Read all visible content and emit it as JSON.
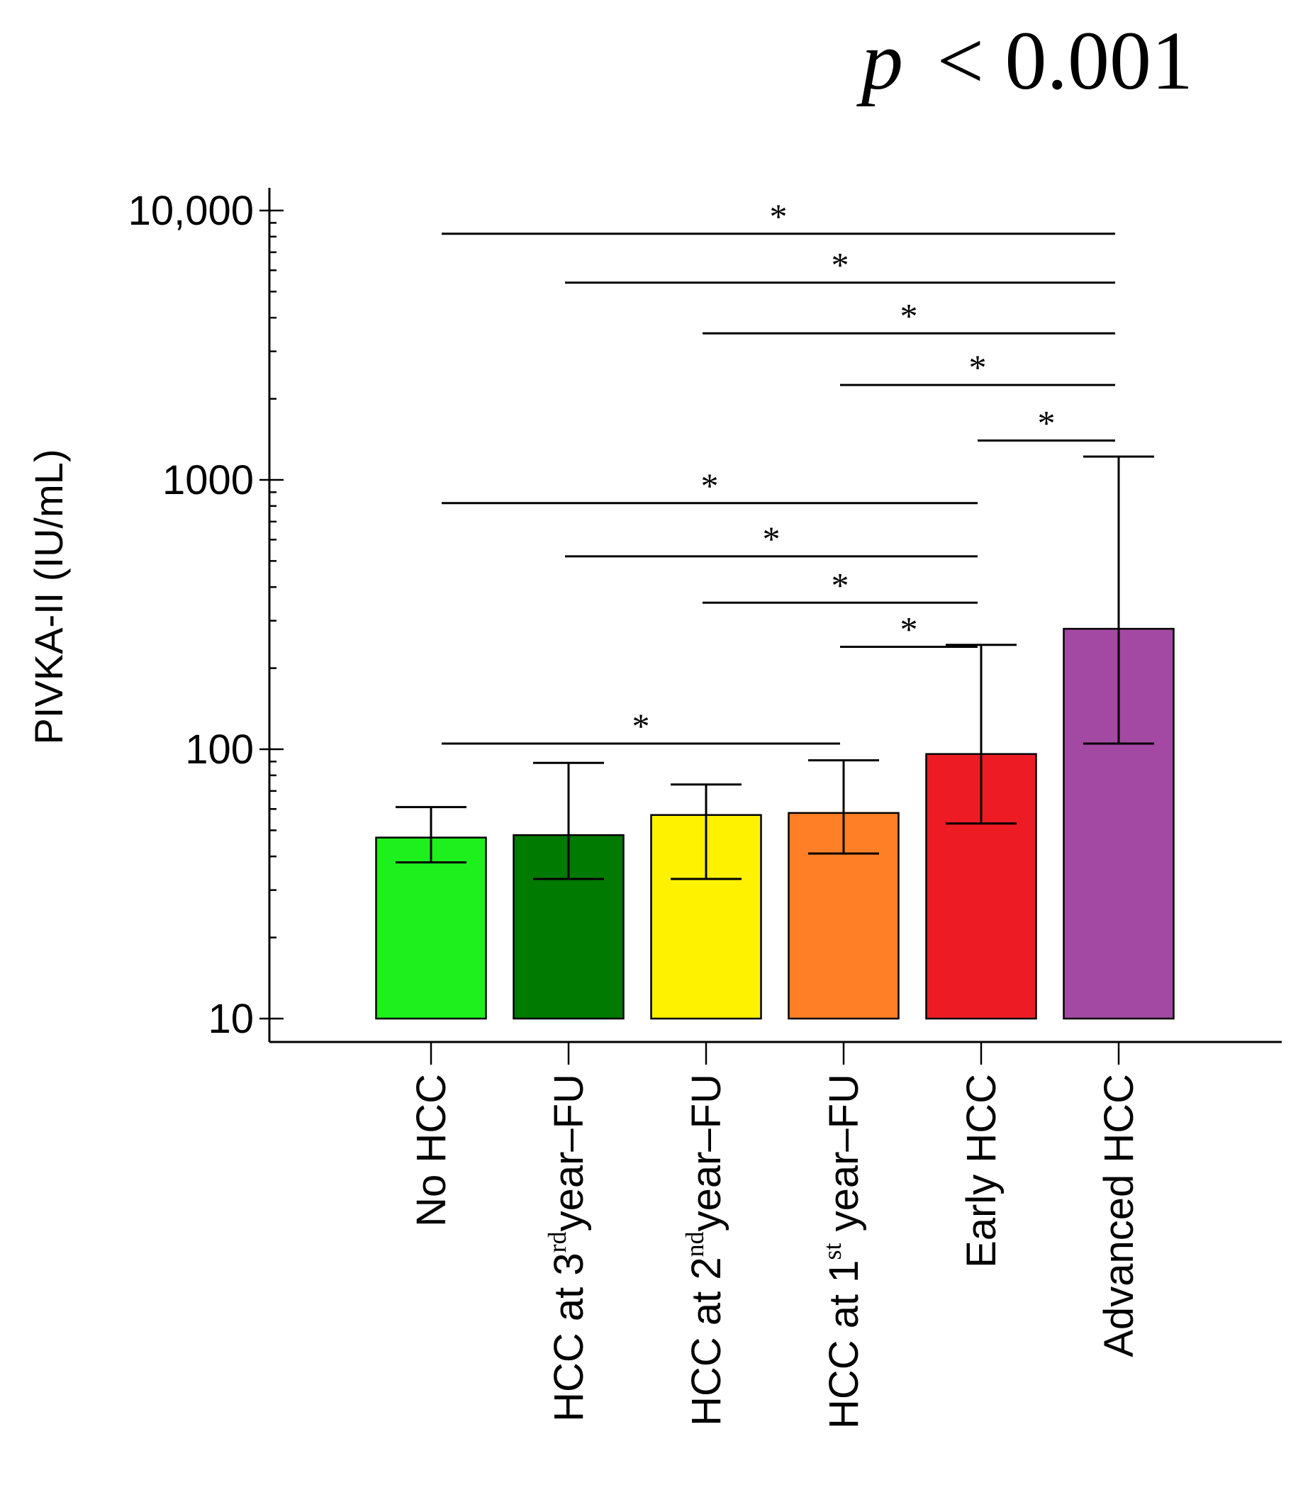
{
  "chart_data": {
    "type": "bar",
    "title": "",
    "annotation": {
      "p_symbol": "p",
      "p_rest": "< 0.001"
    },
    "ylabel": "PIVKA-II (IU/mL)",
    "xlabel": "",
    "yscale": "log",
    "ylim": [
      10,
      12000
    ],
    "yticks": [
      10,
      100,
      1000,
      10000
    ],
    "ytick_labels": [
      "10",
      "100",
      "1000",
      "10,000"
    ],
    "categories": [
      {
        "base": "No HCC",
        "sup": "",
        "tail": ""
      },
      {
        "base": "HCC at 3",
        "sup": "rd",
        "tail": "year–FU"
      },
      {
        "base": "HCC at 2",
        "sup": "nd",
        "tail": "year–FU"
      },
      {
        "base": "HCC at 1",
        "sup": "st",
        "tail": " year–FU"
      },
      {
        "base": "Early HCC",
        "sup": "",
        "tail": ""
      },
      {
        "base": "Advanced HCC",
        "sup": "",
        "tail": ""
      }
    ],
    "values": [
      47,
      48,
      57,
      58,
      96,
      280
    ],
    "error_low": [
      38,
      33,
      33,
      41,
      53,
      105
    ],
    "error_high": [
      61,
      89,
      74,
      91,
      244,
      1220
    ],
    "colors": [
      "#1ef01e",
      "#007a00",
      "#fff200",
      "#ff7f27",
      "#ed1c24",
      "#a349a4"
    ],
    "significance": [
      {
        "from": 0,
        "to": 5,
        "y": 8200,
        "label": "*"
      },
      {
        "from": 1,
        "to": 5,
        "y": 5400,
        "label": "*"
      },
      {
        "from": 2,
        "to": 5,
        "y": 3500,
        "label": "*"
      },
      {
        "from": 3,
        "to": 5,
        "y": 2250,
        "label": "*"
      },
      {
        "from": 4,
        "to": 5,
        "y": 1400,
        "label": "*"
      },
      {
        "from": 0,
        "to": 4,
        "y": 820,
        "label": "*"
      },
      {
        "from": 1,
        "to": 4,
        "y": 520,
        "label": "*"
      },
      {
        "from": 2,
        "to": 4,
        "y": 350,
        "label": "*"
      },
      {
        "from": 3,
        "to": 4,
        "y": 240,
        "label": "*"
      },
      {
        "from": 0,
        "to": 3,
        "y": 105,
        "label": "*"
      }
    ]
  }
}
